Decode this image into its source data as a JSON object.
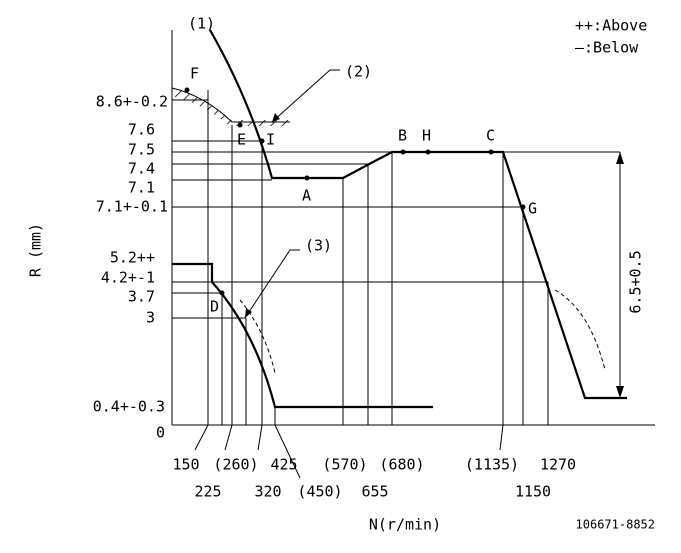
{
  "callouts": [
    "(1)",
    "(2)",
    "(3)"
  ],
  "legend": {
    "above": "++:Above",
    "below": "—:Below"
  },
  "points": {
    "F": "F",
    "E": "E",
    "I": "I",
    "A": "A",
    "B": "B",
    "H": "H",
    "C": "C",
    "G": "G",
    "D": "D"
  },
  "y_labels": [
    "8.6+-0.2",
    "7.6",
    "7.5",
    "7.4",
    "7.1",
    "7.1+-0.1",
    "5.2++",
    "4.2+-1",
    "3.7",
    "3",
    "0.4+-0.3",
    "0"
  ],
  "x_labels_upper": [
    "150",
    "(260)",
    "425",
    "(570)",
    "(680)",
    "(1135)",
    "1270"
  ],
  "x_labels_lower": [
    "225",
    "320",
    "(450)",
    "655",
    "1150"
  ],
  "y_axis_title": "R (mm)",
  "x_axis_title": "N(r/min)",
  "dimension": "6.5+0.5",
  "code": "106671-8852"
}
